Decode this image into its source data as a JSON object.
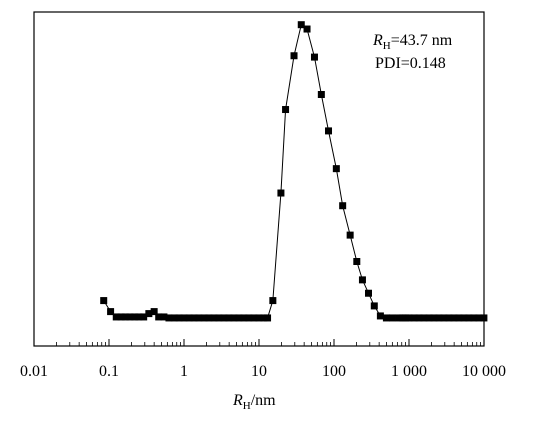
{
  "chart_data": {
    "type": "scatter",
    "title": "",
    "xscale": "log",
    "xlim": [
      0.01,
      10000
    ],
    "ylim": [
      0,
      1
    ],
    "y_ticks_labeled": false,
    "grid": false,
    "legend": "none",
    "marker": "square",
    "series_color": "#000000",
    "xlabel": {
      "symbol": "R",
      "subscript": "H",
      "suffix": "/nm"
    },
    "xtick_labels": [
      "0.01",
      "0.1",
      "1",
      "10",
      "100",
      "1 000",
      "10 000"
    ],
    "xtick_values": [
      0.01,
      0.1,
      1,
      10,
      100,
      1000,
      10000
    ],
    "annotations": {
      "rh": {
        "symbol": "R",
        "subscript": "H",
        "value": "=43.7 nm"
      },
      "pdi": "PDI=0.148"
    },
    "series": [
      {
        "x": [
          0.085,
          0.105,
          0.125,
          0.145,
          0.165,
          0.19,
          0.22,
          0.25,
          0.29,
          0.34,
          0.4,
          0.46,
          0.54,
          0.63,
          0.74,
          0.86,
          1.0,
          1.17,
          1.36,
          1.58,
          1.85,
          2.15,
          2.51,
          2.92,
          3.41,
          3.97,
          4.63,
          5.4,
          6.29,
          7.33,
          8.55,
          9.97,
          11.6,
          13.0,
          15.3,
          19.6,
          22.6,
          29.3,
          36.6,
          43.7,
          54.9,
          67.8,
          84.5,
          107.4,
          130.5,
          164.2,
          201.4,
          239.5,
          288.4,
          344.5,
          415.5,
          500.0,
          601.7,
          737.1,
          829.0,
          900.0,
          1000,
          1170,
          1360,
          1580,
          1850,
          2150,
          2510,
          2920,
          3410,
          3970,
          4630,
          5400,
          6290,
          7330,
          8550,
          9970
        ],
        "y": [
          0.136,
          0.103,
          0.087,
          0.087,
          0.087,
          0.087,
          0.087,
          0.087,
          0.087,
          0.097,
          0.103,
          0.087,
          0.087,
          0.084,
          0.084,
          0.084,
          0.084,
          0.084,
          0.084,
          0.084,
          0.084,
          0.084,
          0.084,
          0.084,
          0.084,
          0.084,
          0.084,
          0.084,
          0.084,
          0.084,
          0.084,
          0.084,
          0.084,
          0.084,
          0.136,
          0.458,
          0.708,
          0.869,
          0.962,
          0.949,
          0.865,
          0.753,
          0.644,
          0.531,
          0.42,
          0.332,
          0.253,
          0.198,
          0.158,
          0.12,
          0.09,
          0.084,
          0.084,
          0.084,
          0.084,
          0.084,
          0.084,
          0.084,
          0.084,
          0.084,
          0.084,
          0.084,
          0.084,
          0.084,
          0.084,
          0.084,
          0.084,
          0.084,
          0.084,
          0.084,
          0.084,
          0.084
        ]
      }
    ]
  }
}
